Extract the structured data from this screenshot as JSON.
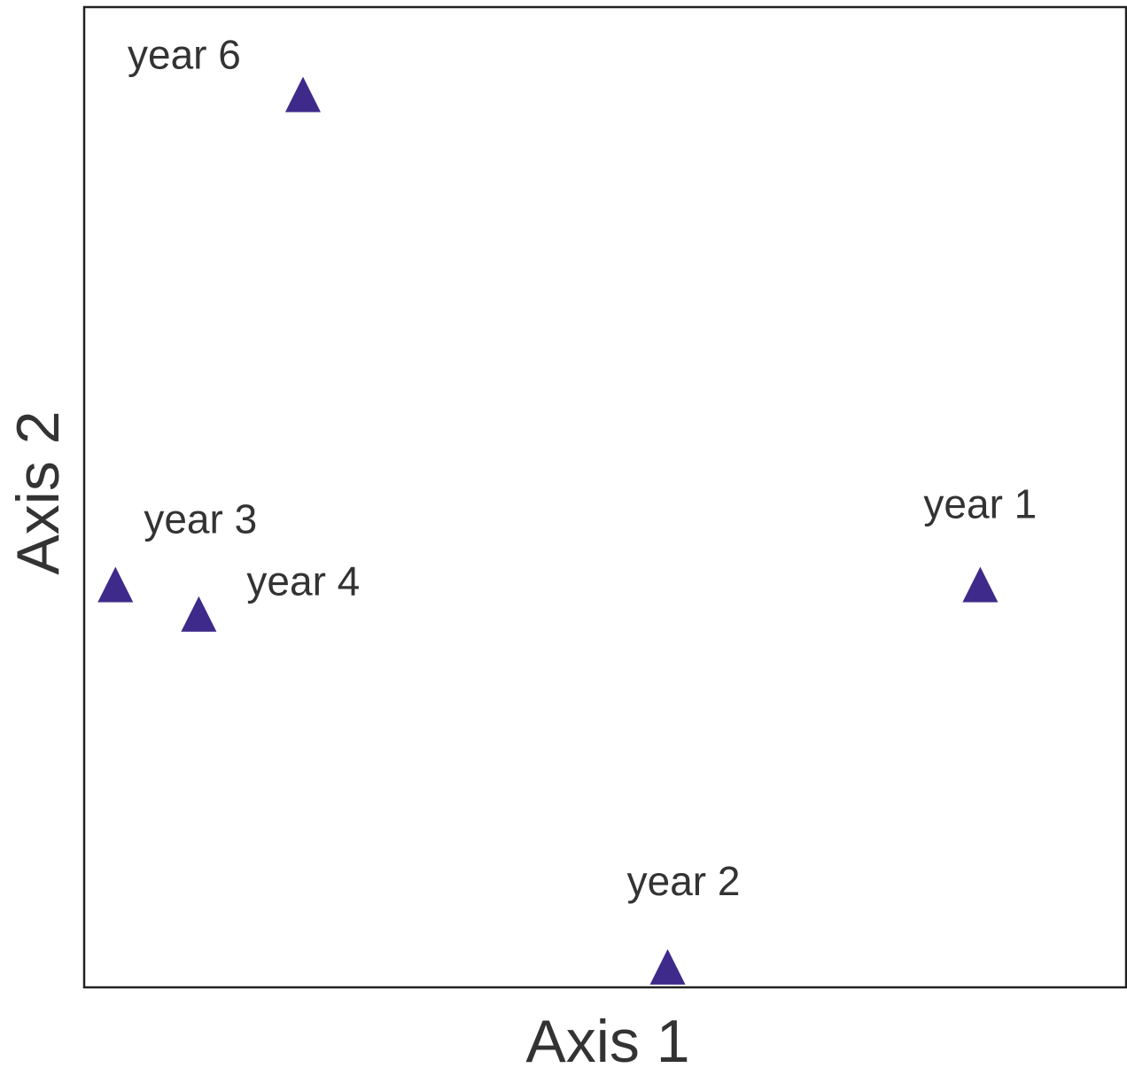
{
  "chart_data": {
    "type": "scatter",
    "title": "",
    "xlabel": "Axis 1",
    "ylabel": "Axis 2",
    "xlim": [
      0,
      10
    ],
    "ylim": [
      0,
      10
    ],
    "grid": false,
    "legend": "none",
    "marker": "triangle",
    "marker_color": "#3d2a8a",
    "points": [
      {
        "label": "year 1",
        "x": 8.6,
        "y": 4.1
      },
      {
        "label": "year 2",
        "x": 5.6,
        "y": 0.2
      },
      {
        "label": "year 3",
        "x": 0.3,
        "y": 4.1
      },
      {
        "label": "year 4",
        "x": 1.1,
        "y": 3.8
      },
      {
        "label": "year 6",
        "x": 2.1,
        "y": 9.1
      }
    ]
  }
}
